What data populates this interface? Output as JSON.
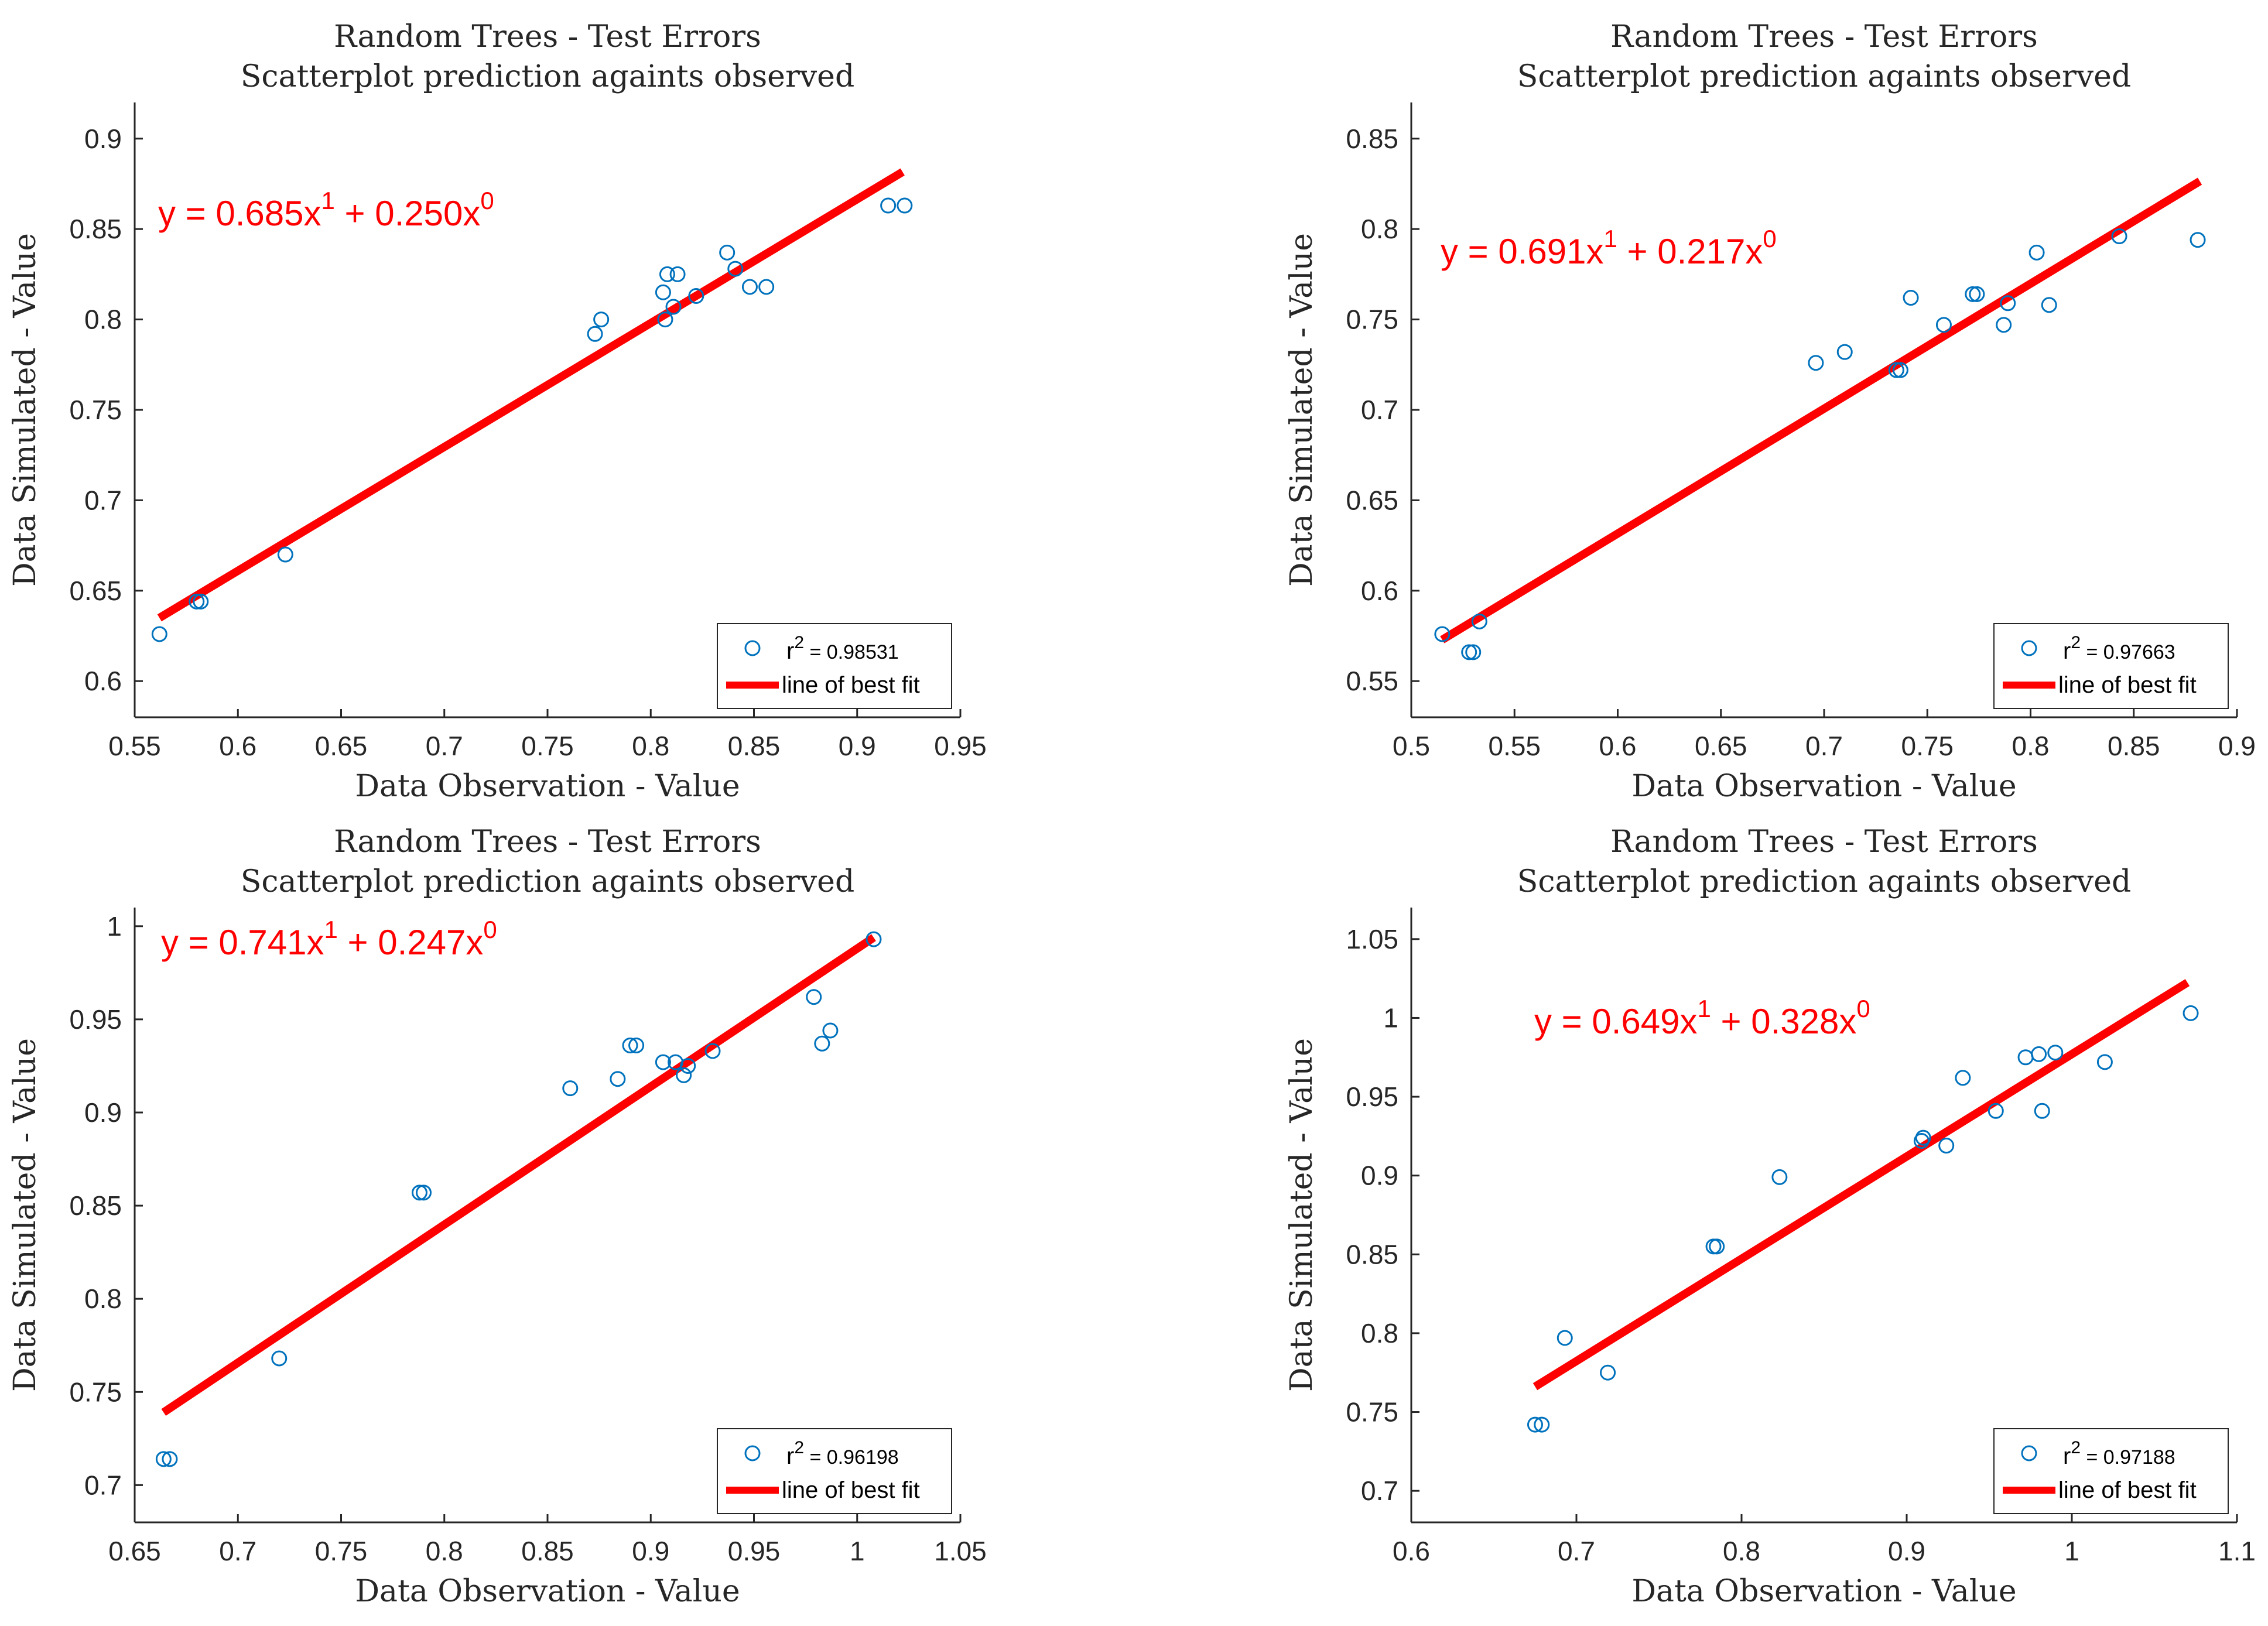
{
  "colors": {
    "points": "#0072bd",
    "fit_line": "#ff0000",
    "axis": "#262626",
    "equation": "#ff0000"
  },
  "chart_data": [
    {
      "type": "scatter",
      "title": "Random Trees - Test Errors",
      "subtitle": "Scatterplot prediction againts observed",
      "xlabel": "Data Observation - Value",
      "ylabel": "Data Simulated - Value",
      "xlim": [
        0.55,
        0.95
      ],
      "ylim": [
        0.58,
        0.92
      ],
      "xticks": [
        "0.55",
        "0.6",
        "0.65",
        "0.7",
        "0.75",
        "0.8",
        "0.85",
        "0.9",
        "0.95"
      ],
      "yticks": [
        "0.6",
        "0.65",
        "0.7",
        "0.75",
        "0.8",
        "0.85",
        "0.9"
      ],
      "equation": {
        "prefix": "y = 0.685x",
        "exp1": "1",
        "mid": " + 0.250x",
        "exp0": "0"
      },
      "fit": {
        "slope": 0.685,
        "intercept": 0.25,
        "x_range": [
          0.562,
          0.922
        ]
      },
      "legend": {
        "r_label": "r",
        "r_exp": "2",
        "r_value": " = 0.98531",
        "line_label": "line of best fit"
      },
      "points": [
        [
          0.562,
          0.626
        ],
        [
          0.58,
          0.644
        ],
        [
          0.582,
          0.644
        ],
        [
          0.623,
          0.67
        ],
        [
          0.773,
          0.792
        ],
        [
          0.776,
          0.8
        ],
        [
          0.806,
          0.815
        ],
        [
          0.807,
          0.8
        ],
        [
          0.808,
          0.825
        ],
        [
          0.811,
          0.807
        ],
        [
          0.813,
          0.825
        ],
        [
          0.822,
          0.813
        ],
        [
          0.837,
          0.837
        ],
        [
          0.841,
          0.828
        ],
        [
          0.848,
          0.818
        ],
        [
          0.856,
          0.818
        ],
        [
          0.915,
          0.863
        ],
        [
          0.923,
          0.863
        ]
      ]
    },
    {
      "type": "scatter",
      "title": "Random Trees - Test Errors",
      "subtitle": "Scatterplot prediction againts observed",
      "xlabel": "Data Observation - Value",
      "ylabel": "Data Simulated - Value",
      "xlim": [
        0.5,
        0.9
      ],
      "ylim": [
        0.53,
        0.87
      ],
      "xticks": [
        "0.5",
        "0.55",
        "0.6",
        "0.65",
        "0.7",
        "0.75",
        "0.8",
        "0.85",
        "0.9"
      ],
      "yticks": [
        "0.55",
        "0.6",
        "0.65",
        "0.7",
        "0.75",
        "0.8",
        "0.85"
      ],
      "equation": {
        "prefix": "y = 0.691x",
        "exp1": "1",
        "mid": " + 0.217x",
        "exp0": "0"
      },
      "fit": {
        "slope": 0.691,
        "intercept": 0.217,
        "x_range": [
          0.515,
          0.882
        ]
      },
      "legend": {
        "r_label": "r",
        "r_exp": "2",
        "r_value": " = 0.97663",
        "line_label": "line of best fit"
      },
      "points": [
        [
          0.515,
          0.576
        ],
        [
          0.528,
          0.566
        ],
        [
          0.53,
          0.566
        ],
        [
          0.533,
          0.583
        ],
        [
          0.696,
          0.726
        ],
        [
          0.71,
          0.732
        ],
        [
          0.735,
          0.722
        ],
        [
          0.737,
          0.722
        ],
        [
          0.742,
          0.762
        ],
        [
          0.758,
          0.747
        ],
        [
          0.772,
          0.764
        ],
        [
          0.774,
          0.764
        ],
        [
          0.787,
          0.747
        ],
        [
          0.789,
          0.759
        ],
        [
          0.803,
          0.787
        ],
        [
          0.809,
          0.758
        ],
        [
          0.843,
          0.796
        ],
        [
          0.881,
          0.794
        ]
      ]
    },
    {
      "type": "scatter",
      "title": "Random Trees - Test Errors",
      "subtitle": "Scatterplot prediction againts observed",
      "xlabel": "Data Observation - Value",
      "ylabel": "Data Simulated - Value",
      "xlim": [
        0.65,
        1.05
      ],
      "ylim": [
        0.68,
        1.01
      ],
      "xticks": [
        "0.65",
        "0.7",
        "0.75",
        "0.8",
        "0.85",
        "0.9",
        "0.95",
        "1",
        "1.05"
      ],
      "yticks": [
        "0.7",
        "0.75",
        "0.8",
        "0.85",
        "0.9",
        "0.95",
        "1"
      ],
      "equation": {
        "prefix": "y = 0.741x",
        "exp1": "1",
        "mid": " + 0.247x",
        "exp0": "0"
      },
      "fit": {
        "slope": 0.741,
        "intercept": 0.247,
        "x_range": [
          0.664,
          1.008
        ]
      },
      "legend": {
        "r_label": "r",
        "r_exp": "2",
        "r_value": " = 0.96198",
        "line_label": "line of best fit"
      },
      "points": [
        [
          0.664,
          0.714
        ],
        [
          0.667,
          0.714
        ],
        [
          0.72,
          0.768
        ],
        [
          0.788,
          0.857
        ],
        [
          0.79,
          0.857
        ],
        [
          0.861,
          0.913
        ],
        [
          0.884,
          0.918
        ],
        [
          0.89,
          0.936
        ],
        [
          0.893,
          0.936
        ],
        [
          0.906,
          0.927
        ],
        [
          0.912,
          0.927
        ],
        [
          0.916,
          0.92
        ],
        [
          0.918,
          0.925
        ],
        [
          0.93,
          0.933
        ],
        [
          0.979,
          0.962
        ],
        [
          0.983,
          0.937
        ],
        [
          0.987,
          0.944
        ],
        [
          1.008,
          0.993
        ]
      ]
    },
    {
      "type": "scatter",
      "title": "Random Trees - Test Errors",
      "subtitle": "Scatterplot prediction againts observed",
      "xlabel": "Data Observation - Value",
      "ylabel": "Data Simulated - Value",
      "xlim": [
        0.6,
        1.1
      ],
      "ylim": [
        0.68,
        1.07
      ],
      "xticks": [
        "0.6",
        "0.7",
        "0.8",
        "0.9",
        "1",
        "1.1"
      ],
      "yticks": [
        "0.7",
        "0.75",
        "0.8",
        "0.85",
        "0.9",
        "0.95",
        "1",
        "1.05"
      ],
      "equation": {
        "prefix": "y = 0.649x",
        "exp1": "1",
        "mid": " + 0.328x",
        "exp0": "0"
      },
      "fit": {
        "slope": 0.649,
        "intercept": 0.328,
        "x_range": [
          0.675,
          1.07
        ]
      },
      "legend": {
        "r_label": "r",
        "r_exp": "2",
        "r_value": " = 0.97188",
        "line_label": "line of best fit"
      },
      "points": [
        [
          0.675,
          0.742
        ],
        [
          0.679,
          0.742
        ],
        [
          0.693,
          0.797
        ],
        [
          0.719,
          0.775
        ],
        [
          0.783,
          0.855
        ],
        [
          0.785,
          0.855
        ],
        [
          0.823,
          0.899
        ],
        [
          0.909,
          0.922
        ],
        [
          0.91,
          0.924
        ],
        [
          0.924,
          0.919
        ],
        [
          0.934,
          0.962
        ],
        [
          0.954,
          0.941
        ],
        [
          0.972,
          0.975
        ],
        [
          0.98,
          0.977
        ],
        [
          0.982,
          0.941
        ],
        [
          0.99,
          0.978
        ],
        [
          1.02,
          0.972
        ],
        [
          1.072,
          1.003
        ]
      ]
    }
  ]
}
